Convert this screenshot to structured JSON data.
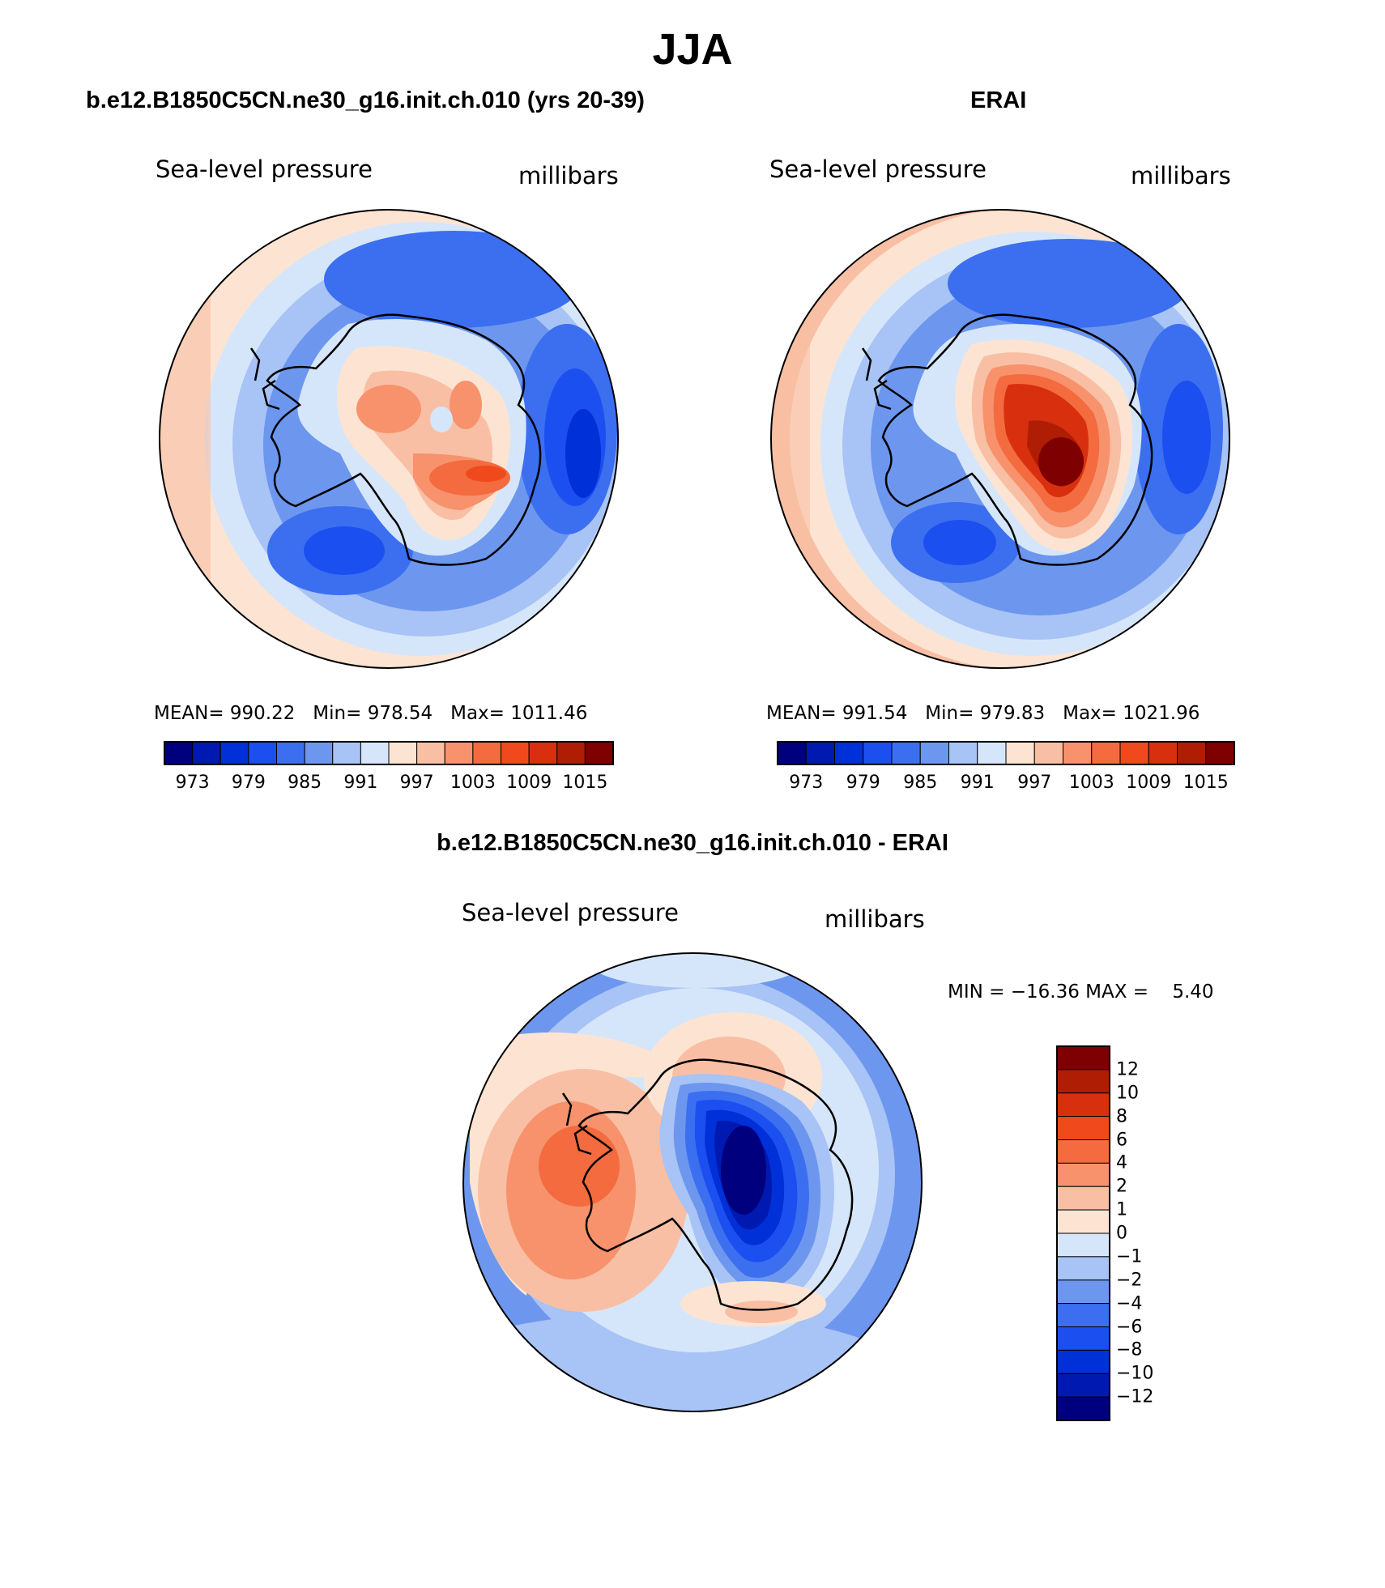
{
  "figure": {
    "title": "JJA",
    "left_title": "b.e12.B1850C5CN.ne30_g16.init.ch.010 (yrs 20-39)",
    "right_title": "ERAI",
    "diff_title": "b.e12.B1850C5CN.ne30_g16.init.ch.010 - ERAI"
  },
  "chart_data": [
    {
      "type": "map",
      "projection": "south-polar-stereographic",
      "variable": "Sea-level pressure",
      "units": "millibars",
      "stats_text": "MEAN= 990.22   Min= 978.54   Max= 1011.46",
      "mean": 990.22,
      "min": 978.54,
      "max": 1011.46,
      "colorbar_ticks": [
        "973",
        "979",
        "985",
        "991",
        "997",
        "1003",
        "1009",
        "1015"
      ],
      "levels": [
        970,
        973,
        976,
        979,
        982,
        985,
        988,
        991,
        994,
        997,
        1000,
        1003,
        1006,
        1009,
        1012,
        1015,
        1018
      ]
    },
    {
      "type": "map",
      "projection": "south-polar-stereographic",
      "variable": "Sea-level pressure",
      "units": "millibars",
      "stats_text": "MEAN= 991.54   Min= 979.83   Max= 1021.96",
      "mean": 991.54,
      "min": 979.83,
      "max": 1021.96,
      "colorbar_ticks": [
        "973",
        "979",
        "985",
        "991",
        "997",
        "1003",
        "1009",
        "1015"
      ],
      "levels": [
        970,
        973,
        976,
        979,
        982,
        985,
        988,
        991,
        994,
        997,
        1000,
        1003,
        1006,
        1009,
        1012,
        1015,
        1018
      ]
    },
    {
      "type": "map",
      "projection": "south-polar-stereographic",
      "variable": "Sea-level pressure",
      "units": "millibars",
      "stats_text": "MIN = -16.36 MAX =    5.40",
      "min": -16.36,
      "max": 5.4,
      "colorbar_ticks": [
        "12",
        "10",
        "8",
        "6",
        "4",
        "2",
        "1",
        "0",
        "-1",
        "-2",
        "-4",
        "-6",
        "-8",
        "-10",
        "-12"
      ]
    }
  ],
  "colors": {
    "palette": [
      "#00007f",
      "#0019b0",
      "#0030d8",
      "#1c4ff0",
      "#3b6ff0",
      "#6d97ee",
      "#a8c3f5",
      "#d6e6fa",
      "#fde4d2",
      "#f9bfa4",
      "#f7926d",
      "#f36b3f",
      "#f04a1c",
      "#d8300e",
      "#b01d05",
      "#7f0000"
    ],
    "ocean_low": "#3b6ff0",
    "land_high": "#f04a1c"
  }
}
